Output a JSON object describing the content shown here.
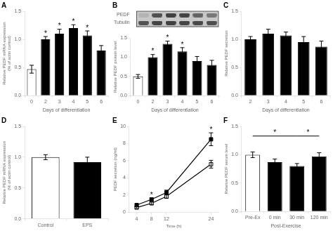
{
  "chart_data": [
    {
      "type": "bar",
      "title": "A",
      "categories": [
        "0",
        "2",
        "3",
        "4",
        "5",
        "6"
      ],
      "values": [
        0.47,
        1.0,
        1.1,
        1.2,
        1.07,
        0.8
      ],
      "errors": [
        0.07,
        0.05,
        0.08,
        0.06,
        0.08,
        0.09
      ],
      "colors": [
        "white",
        "black",
        "black",
        "black",
        "black",
        "black"
      ],
      "ylabel": "Relative PEDF mRNA expression\n(% of actin control)",
      "xlabel": "Days of differentiation",
      "ylim": [
        0,
        1.5
      ],
      "yticks": [
        {
          "value": 0,
          "label": "0.0"
        },
        0.5,
        {
          "value": 1,
          "label": "1.0"
        },
        1.5
      ],
      "grid": false,
      "annotations": [
        {
          "x": "2",
          "text": "*"
        },
        {
          "x": "3",
          "text": "*"
        },
        {
          "x": "4",
          "text": "*"
        },
        {
          "x": "5",
          "text": "*"
        }
      ]
    },
    {
      "type": "blot",
      "title": "B",
      "categories": [
        null,
        null,
        null,
        null,
        null,
        null
      ],
      "series": [
        {
          "name": "PEDF",
          "values": [
            0.35,
            0.8,
            0.88,
            0.86,
            0.72,
            0.62
          ]
        },
        {
          "name": "Tubulin",
          "values": [
            0.72,
            0.78,
            0.8,
            0.78,
            0.76,
            0.74
          ]
        }
      ],
      "tick_labels": "y",
      "grid": false
    },
    {
      "type": "bar",
      "categories": [
        "0",
        "2",
        "3",
        "4",
        "5",
        "6"
      ],
      "values": [
        0.5,
        1.0,
        1.35,
        1.15,
        0.9,
        0.8
      ],
      "errors": [
        0.05,
        0.07,
        0.07,
        0.1,
        0.12,
        0.12
      ],
      "colors": [
        "white",
        "black",
        "black",
        "black",
        "black",
        "black"
      ],
      "ylabel": "Relative PEDF protein level",
      "xlabel": "Days of differentiation",
      "ylim": [
        0,
        1.5
      ],
      "yticks": [
        {
          "value": 0,
          "label": "0.0"
        },
        0.5,
        {
          "value": 1,
          "label": "1.0"
        },
        1.5
      ],
      "grid": false,
      "annotations": [
        {
          "x": "2",
          "text": "*"
        },
        {
          "x": "3",
          "text": "*"
        },
        {
          "x": "4",
          "text": "*"
        }
      ]
    },
    {
      "type": "bar",
      "title": "C",
      "categories": [
        "2",
        "3",
        "4",
        "5",
        "6"
      ],
      "values": [
        1.0,
        1.1,
        1.07,
        0.95,
        0.87
      ],
      "errors": [
        0.05,
        0.08,
        0.06,
        0.1,
        0.1
      ],
      "colors": [
        "black",
        "black",
        "black",
        "black",
        "black"
      ],
      "ylabel": "Relative PEDF secretion",
      "xlabel": "Days of differentiation",
      "ylim": [
        0,
        1.5
      ],
      "yticks": [
        {
          "value": 0,
          "label": "0.0"
        },
        0.5,
        {
          "value": 1,
          "label": "1.0"
        },
        1.5
      ],
      "grid": false
    },
    {
      "type": "bar",
      "title": "D",
      "categories": [
        "Control",
        "EPS"
      ],
      "values": [
        1.0,
        0.92
      ],
      "errors": [
        0.04,
        0.08
      ],
      "colors": [
        "white",
        "black"
      ],
      "ylabel": "Relative PEDF mRNA expression\n(% of actin control)",
      "ylim": [
        0,
        1.5
      ],
      "yticks": [
        {
          "value": 0,
          "label": "0.0"
        },
        0.5,
        {
          "value": 1,
          "label": "1.0"
        },
        1.5
      ],
      "grid": false
    },
    {
      "type": "line",
      "title": "E",
      "x": [
        4,
        8,
        12,
        24
      ],
      "series": [
        {
          "color": "black",
          "marker": "square",
          "values": [
            0.85,
            1.5,
            2.3,
            8.5
          ],
          "errors": [
            0.12,
            0.18,
            0.28,
            0.75
          ]
        },
        {
          "color": "black",
          "marker": "open_square",
          "values": [
            0.55,
            1.05,
            1.85,
            5.6
          ],
          "errors": [
            0.1,
            0.14,
            0.22,
            0.45
          ]
        }
      ],
      "ylabel": "PEDF secretion (ng/ml)",
      "xlabel": "Time (h)",
      "xlim": [
        2,
        26
      ],
      "xticks": [
        4,
        8,
        12,
        24
      ],
      "ylim": [
        0,
        10
      ],
      "yticks": [
        0,
        2,
        4,
        6,
        8,
        10
      ],
      "grid": false,
      "annotations": [
        {
          "x": 8,
          "text": "*"
        },
        {
          "x": 24,
          "text": "*"
        }
      ]
    },
    {
      "type": "bar",
      "title": "F",
      "categories": [
        "Pre-Ex",
        "0 min",
        "30 min",
        "120 min"
      ],
      "values": [
        1.0,
        0.87,
        0.8,
        0.97
      ],
      "errors": [
        0.05,
        0.055,
        0.045,
        0.065
      ],
      "colors": [
        "white",
        "black",
        "black",
        "black"
      ],
      "ylabel": "Relative PEDF serum level",
      "xlabel": "Post-Exercise",
      "ylim": [
        0,
        1.5
      ],
      "yticks": [
        {
          "value": 0,
          "label": "0.0"
        },
        0.5,
        {
          "value": 1,
          "label": "1.0"
        },
        1.5
      ],
      "grid": false,
      "annotations": [
        {
          "from": "Pre-Ex",
          "to": "30 min",
          "y": 1.33,
          "text": "*"
        },
        {
          "from": "30 min",
          "to": "120 min",
          "y": 1.33,
          "text": "*"
        }
      ]
    }
  ]
}
